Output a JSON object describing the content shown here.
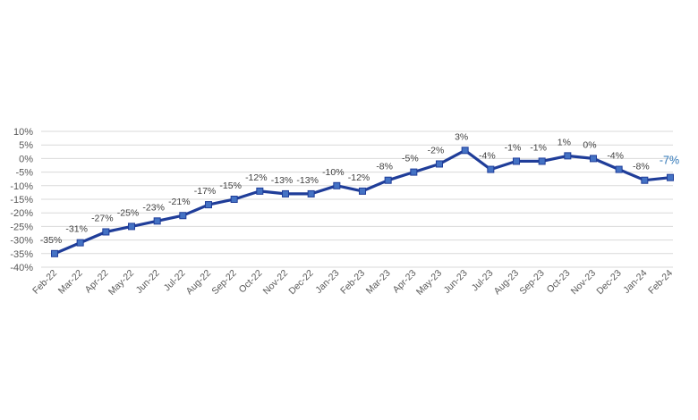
{
  "chart_data": {
    "type": "line",
    "title": "",
    "xlabel": "",
    "ylabel": "",
    "ylim": [
      -40,
      10
    ],
    "yticks": [
      "10%",
      "5%",
      "0%",
      "-5%",
      "-10%",
      "-15%",
      "-20%",
      "-25%",
      "-30%",
      "-35%",
      "-40%"
    ],
    "grid": true,
    "legend": "none",
    "line_color": "#1F3D99",
    "marker_color": "#4472C4",
    "last_label_color": "#2E75B6",
    "categories": [
      "Feb-22",
      "Mar-22",
      "Apr-22",
      "May-22",
      "Jun-22",
      "Jul-22",
      "Aug-22",
      "Sep-22",
      "Oct-22",
      "Nov-22",
      "Dec-22",
      "Jan-23",
      "Feb-23",
      "Mar-23",
      "Apr-23",
      "May-23",
      "Jun-23",
      "Jul-23",
      "Aug-23",
      "Sep-23",
      "Oct-23",
      "Nov-23",
      "Dec-23",
      "Jan-24",
      "Feb-24"
    ],
    "values": [
      -35,
      -31,
      -27,
      -25,
      -23,
      -21,
      -17,
      -15,
      -12,
      -13,
      -13,
      -10,
      -12,
      -8,
      -5,
      -2,
      3,
      -4,
      -1,
      -1,
      1,
      0,
      -4,
      -8,
      -7
    ],
    "labels": [
      "-35%",
      "-31%",
      "-27%",
      "-25%",
      "-23%",
      "-21%",
      "-17%",
      "-15%",
      "-12%",
      "-13%",
      "-13%",
      "-10%",
      "-12%",
      "-8%",
      "-5%",
      "-2%",
      "3%",
      "-4%",
      "-1%",
      "-1%",
      "1%",
      "0%",
      "-4%",
      "-8%",
      "-7%"
    ]
  }
}
